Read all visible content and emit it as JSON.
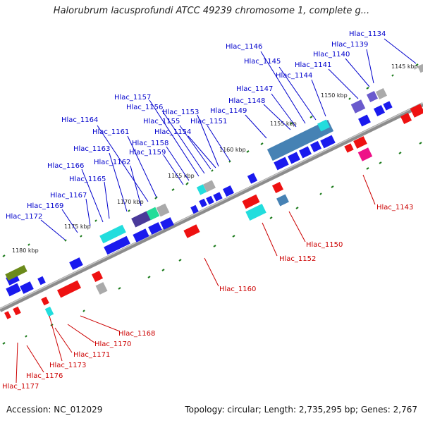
{
  "title": "Halorubrum lacusprofundi ATCC 49239 chromosome 1, complete g...",
  "footer": {
    "accession": "Accession: NC_012029",
    "summary": "Topology: circular; Length: 2,735,295 bp; Genes: 2,767"
  },
  "colors": {
    "forward_label": "#0000cc",
    "reverse_label": "#cc0000",
    "forward_gene": "#1a1aee",
    "reverse_gene": "#ee1111",
    "backbone": "#8c8c8c",
    "tick": "#1a7a1a"
  },
  "scale_labels": [
    "1145 kbp",
    "1150 kbp",
    "1155 kbp",
    "1160 kbp",
    "1165 kbp",
    "1170 kbp",
    "1175 kbp",
    "1180 kbp"
  ],
  "forward_labels": [
    "Hlac_1134",
    "Hlac_1139",
    "Hlac_1140",
    "Hlac_1141",
    "Hlac_1144",
    "Hlac_1145",
    "Hlac_1146",
    "Hlac_1147",
    "Hlac_1148",
    "Hlac_1149",
    "Hlac_1151",
    "Hlac_1153",
    "Hlac_1155",
    "Hlac_1154",
    "Hlac_1156",
    "Hlac_1157",
    "Hlac_1158",
    "Hlac_1159",
    "Hlac_1161",
    "Hlac_1162",
    "Hlac_1163",
    "Hlac_1164",
    "Hlac_1165",
    "Hlac_1166",
    "Hlac_1167",
    "Hlac_1169",
    "Hlac_1172"
  ],
  "reverse_labels": [
    "Hlac_1143",
    "Hlac_1150",
    "Hlac_1152",
    "Hlac_1160",
    "Hlac_1168",
    "Hlac_1170",
    "Hlac_1171",
    "Hlac_1173",
    "Hlac_1176",
    "Hlac_1177"
  ]
}
